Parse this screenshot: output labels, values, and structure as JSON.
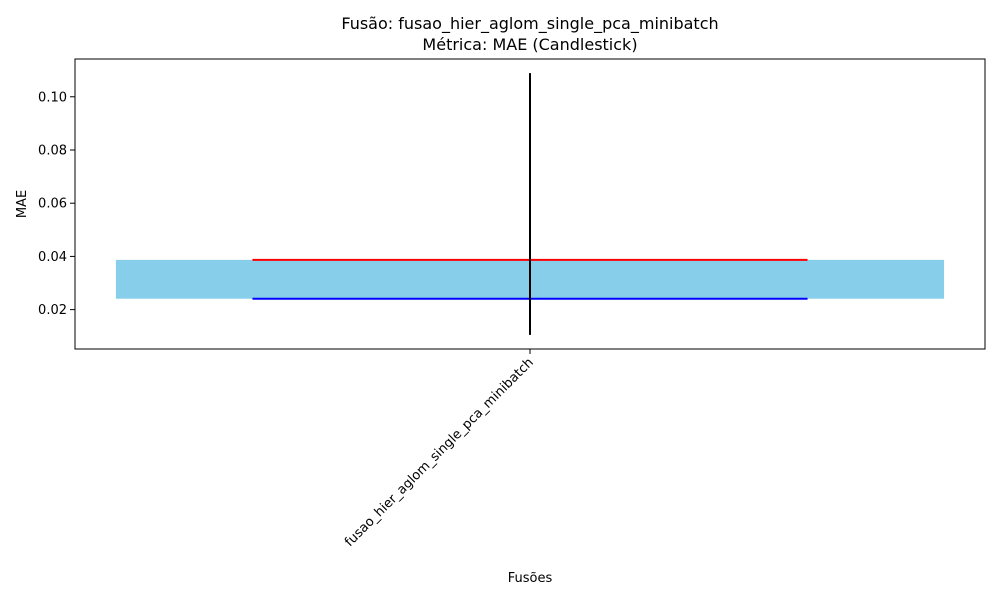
{
  "chart_data": {
    "type": "candlestick",
    "title_line1": "Fusão: fusao_hier_aglom_single_pca_minibatch",
    "title_line2": "Métrica: MAE (Candlestick)",
    "xlabel": "Fusões",
    "ylabel": "MAE",
    "categories": [
      "fusao_hier_aglom_single_pca_minibatch"
    ],
    "candles": [
      {
        "category": "fusao_hier_aglom_single_pca_minibatch",
        "low": 0.0105,
        "open": 0.0241,
        "close": 0.0387,
        "high": 0.1089
      }
    ],
    "ylim": [
      0.0052,
      0.1142
    ],
    "yticks": [
      0.02,
      0.04,
      0.06,
      0.08,
      0.1
    ],
    "ytick_labels": [
      "0.02",
      "0.04",
      "0.06",
      "0.08",
      "0.10"
    ],
    "grid": false,
    "colors": {
      "body": "#87ceeb",
      "open_line": "#0000ff",
      "close_line": "#ff0000",
      "wick": "#000000"
    }
  }
}
